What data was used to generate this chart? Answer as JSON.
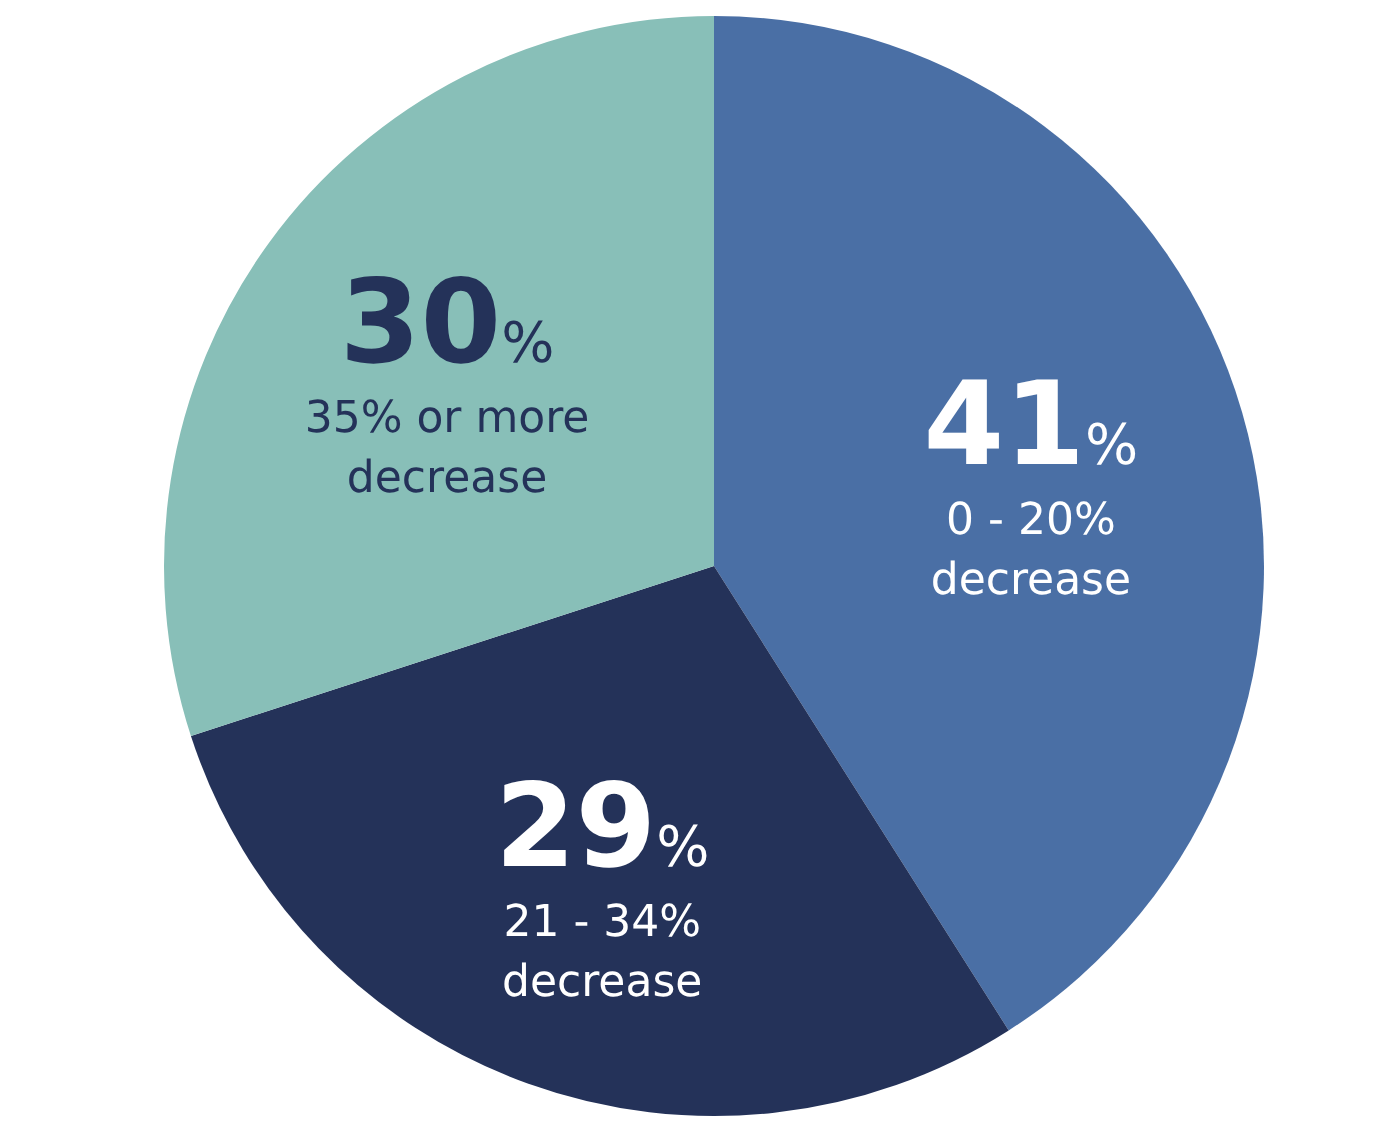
{
  "chart_data": {
    "type": "pie",
    "categories": [
      "0 - 20% decrease",
      "21 - 34% decrease",
      "35% or more decrease"
    ],
    "values": [
      41,
      29,
      30
    ],
    "colors": [
      "#4a6fa5",
      "#243259",
      "#88bfb8"
    ],
    "value_labels": [
      "41%",
      "29%",
      "30%"
    ],
    "legend": false
  }
}
